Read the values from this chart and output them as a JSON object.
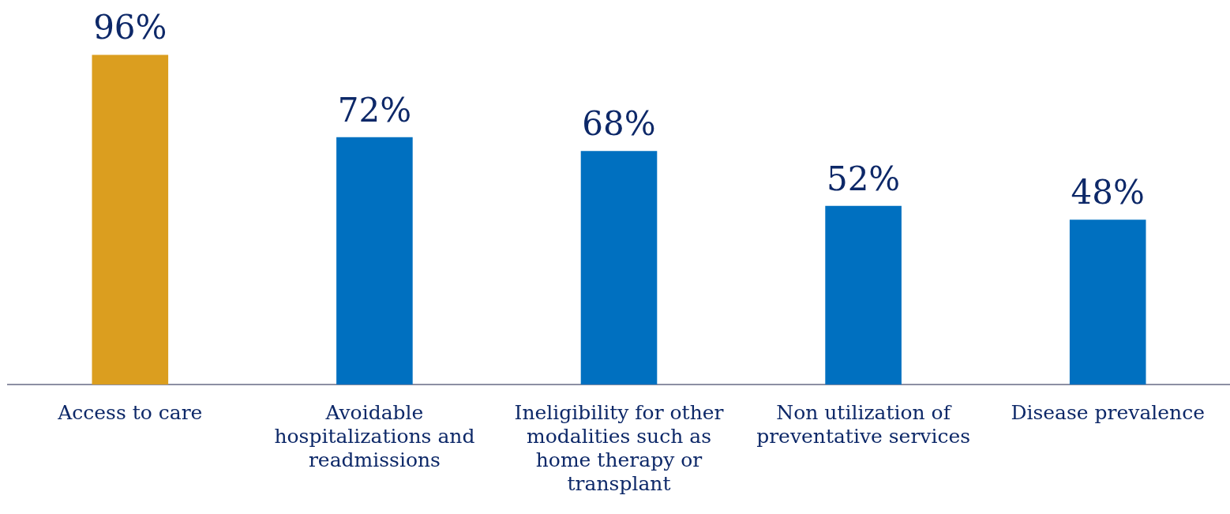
{
  "chart_data": {
    "type": "bar",
    "categories": [
      "Access to care",
      "Avoidable hospitalizations and readmissions",
      "Ineligibility for other modalities such as home therapy or transplant",
      "Non utilization of preventative services",
      "Disease prevalence"
    ],
    "values": [
      96,
      72,
      68,
      52,
      48
    ],
    "colors": [
      "#db9e1f",
      "#0070c0",
      "#0070c0",
      "#0070c0",
      "#0070c0"
    ],
    "value_labels": [
      "96%",
      "72%",
      "68%",
      "52%",
      "48%"
    ],
    "grid": false,
    "legend": false,
    "tick_labels": "x"
  }
}
